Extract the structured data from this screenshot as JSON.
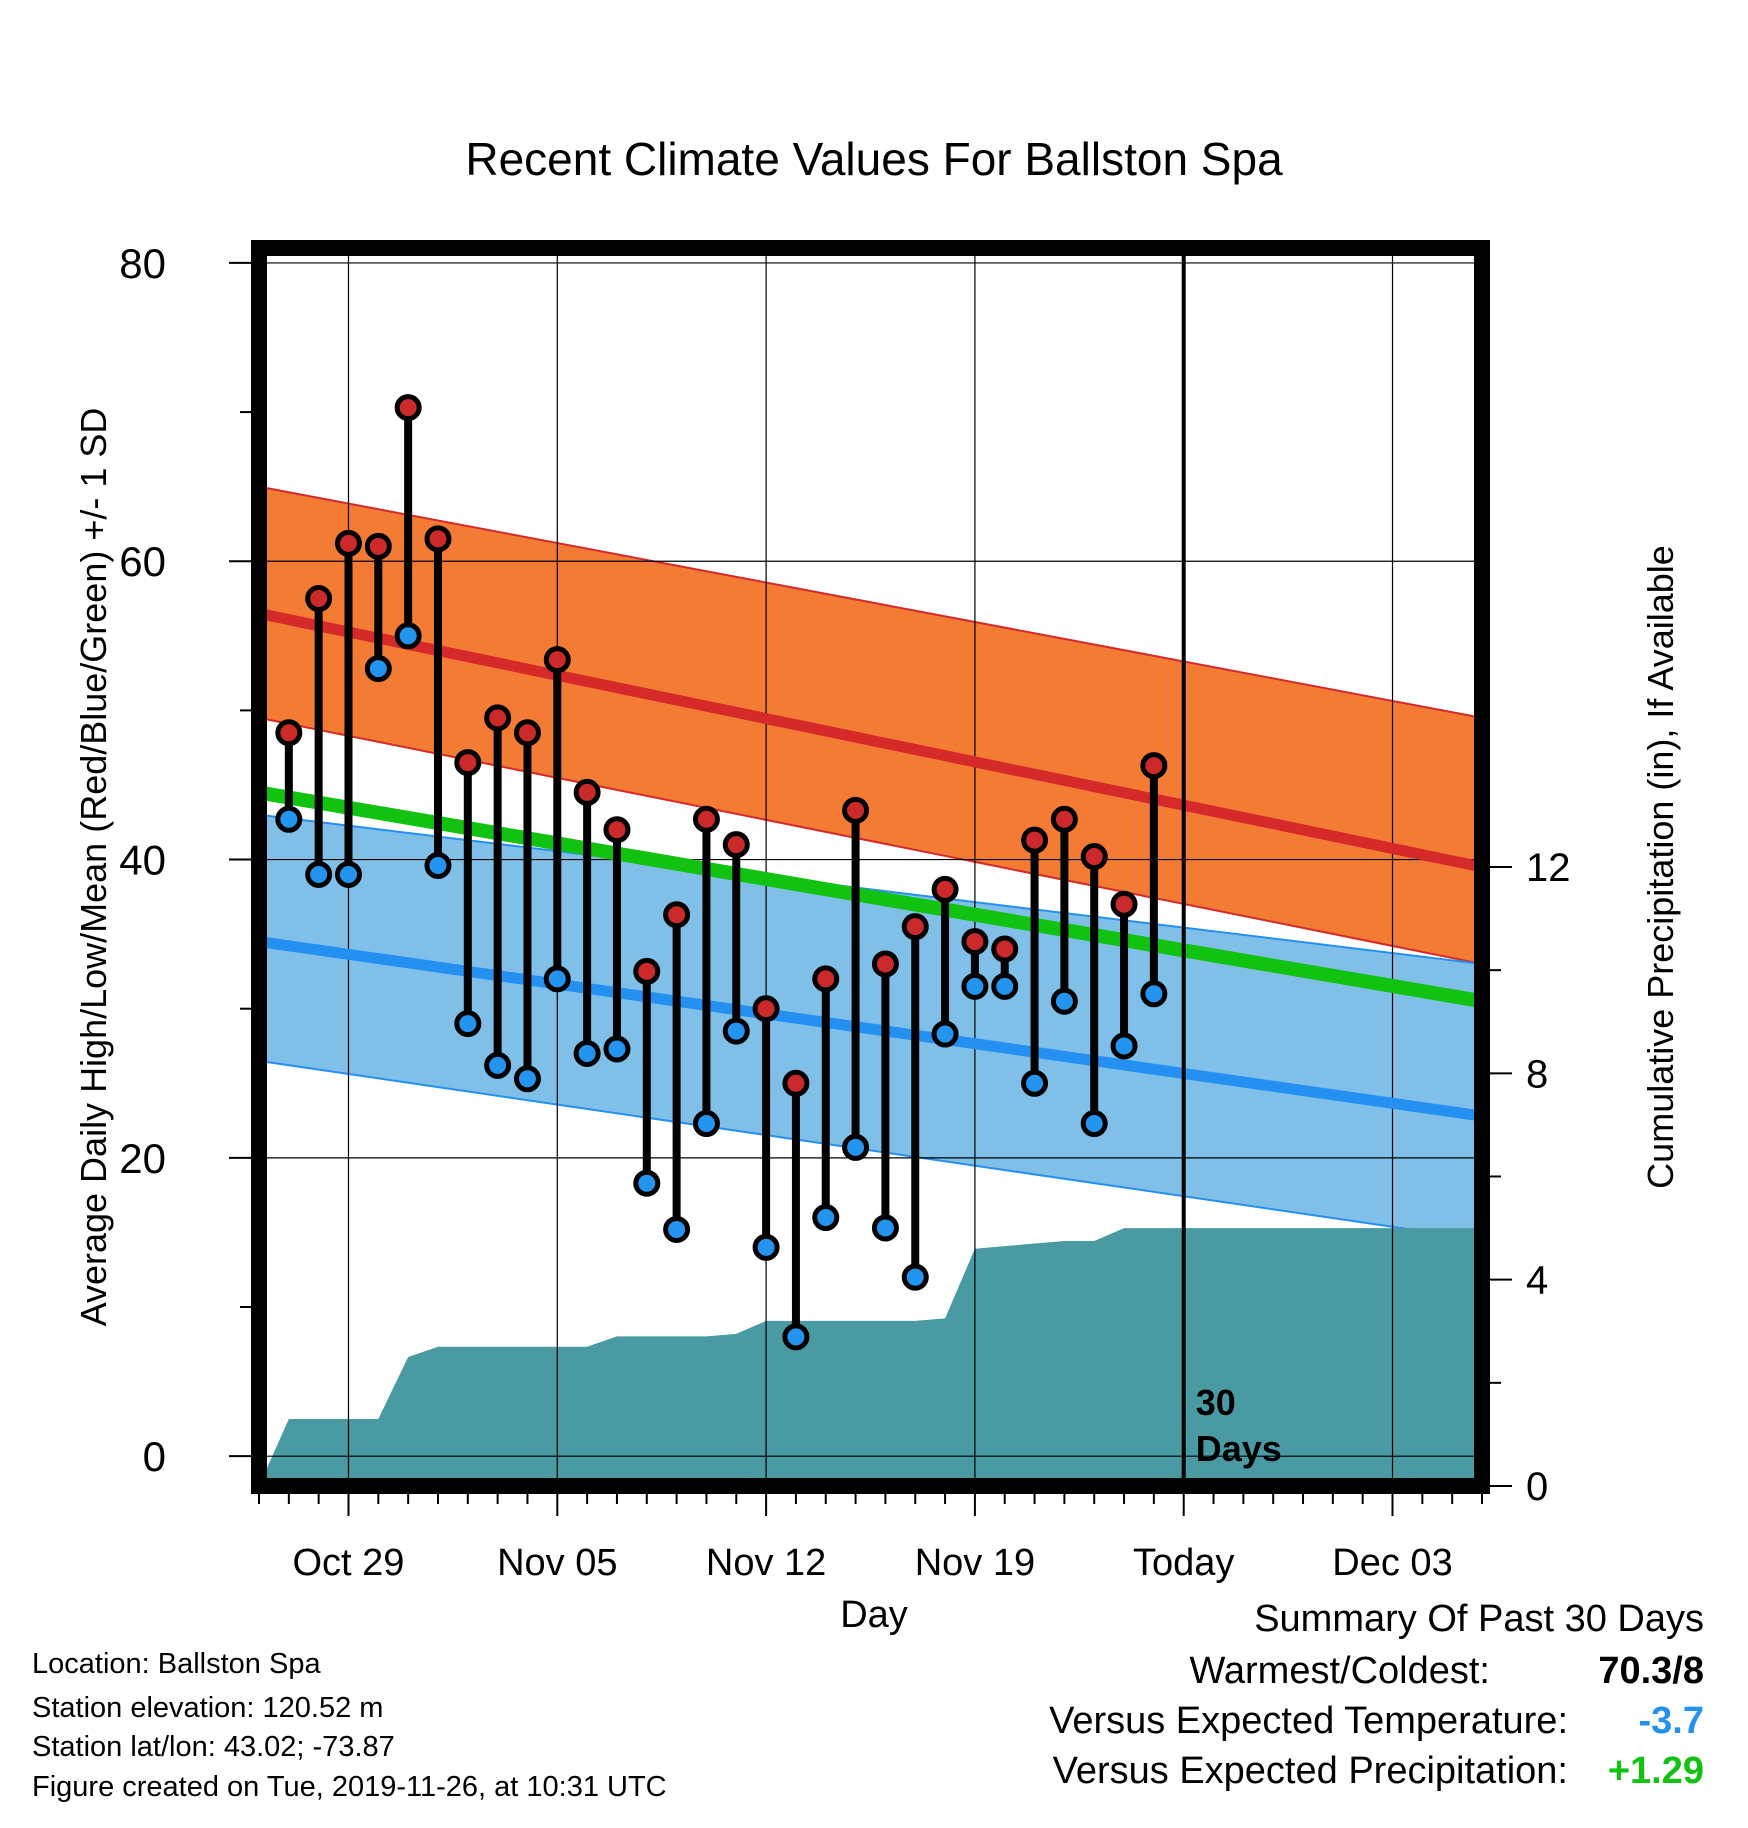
{
  "chart_data": {
    "type": "line",
    "title": "Recent Climate Values For Ballston Spa",
    "xlabel": "Day",
    "ylabel": "Average Daily High/Low/Mean (Red/Blue/Green) +/- 1 SD",
    "y2label": "Cumulative Precipitation (in), If Available",
    "ylim": [
      -2,
      81
    ],
    "y2lim": [
      0,
      24
    ],
    "xlim": [
      "2019-10-26",
      "2019-12-06"
    ],
    "yticks": [
      0,
      20,
      40,
      60,
      80
    ],
    "y2ticks": [
      0,
      4,
      8,
      12
    ],
    "xtick_labels": [
      {
        "date": "2019-10-29",
        "label": "Oct 29"
      },
      {
        "date": "2019-11-05",
        "label": "Nov 05"
      },
      {
        "date": "2019-11-12",
        "label": "Nov 12"
      },
      {
        "date": "2019-11-19",
        "label": "Nov 19"
      },
      {
        "date": "2019-11-26",
        "label": "Today"
      },
      {
        "date": "2019-12-03",
        "label": "Dec 03"
      }
    ],
    "today": "2019-11-26",
    "today_label": [
      "30",
      "Days"
    ],
    "grid": true,
    "colors": {
      "high_band": "#f47b33",
      "high_mean": "#d62a2a",
      "low_band": "#80c0e8",
      "low_mean": "#2390f2",
      "mean": "#11c211",
      "precip": "#4a9aa3",
      "overlap": "#8f1818",
      "observed_high": "#cc2a2a",
      "observed_low": "#2394f0"
    },
    "expected": {
      "x": [
        "2019-10-26",
        "2019-12-06"
      ],
      "high_upper": [
        65.0,
        49.5
      ],
      "high_mean": [
        56.5,
        39.5
      ],
      "high_lower": [
        49.5,
        33.0
      ],
      "low_upper": [
        43.0,
        33.0
      ],
      "low_mean": [
        34.5,
        22.8
      ],
      "low_lower": [
        26.5,
        14.5
      ],
      "mean": [
        44.5,
        30.5
      ]
    },
    "observed": {
      "dates": [
        "2019-10-27",
        "2019-10-28",
        "2019-10-29",
        "2019-10-30",
        "2019-10-31",
        "2019-11-01",
        "2019-11-02",
        "2019-11-03",
        "2019-11-04",
        "2019-11-05",
        "2019-11-06",
        "2019-11-07",
        "2019-11-08",
        "2019-11-09",
        "2019-11-10",
        "2019-11-11",
        "2019-11-12",
        "2019-11-13",
        "2019-11-14",
        "2019-11-15",
        "2019-11-16",
        "2019-11-17",
        "2019-11-18",
        "2019-11-19",
        "2019-11-20",
        "2019-11-21",
        "2019-11-22",
        "2019-11-23",
        "2019-11-24",
        "2019-11-25"
      ],
      "high": [
        48.5,
        57.5,
        61.2,
        61.0,
        70.3,
        61.5,
        46.5,
        49.5,
        48.5,
        53.4,
        44.5,
        42.0,
        32.5,
        36.3,
        42.7,
        41.0,
        30.0,
        25.0,
        32.0,
        43.3,
        33.0,
        35.5,
        38.0,
        34.5,
        34.0,
        41.3,
        42.7,
        40.2,
        37.0,
        46.3
      ],
      "low": [
        42.7,
        39.0,
        39.0,
        52.8,
        55.0,
        39.6,
        29.0,
        26.2,
        25.3,
        32.0,
        27.0,
        27.3,
        18.3,
        15.2,
        22.3,
        28.5,
        14.0,
        8.0,
        16.0,
        20.7,
        15.3,
        12.0,
        28.3,
        31.5,
        31.5,
        25.0,
        30.5,
        22.3,
        27.5,
        31.0
      ]
    },
    "precipitation": {
      "x": [
        "2019-10-26",
        "2019-10-27",
        "2019-10-28",
        "2019-10-29",
        "2019-10-30",
        "2019-10-31",
        "2019-11-01",
        "2019-11-02",
        "2019-11-03",
        "2019-11-04",
        "2019-11-05",
        "2019-11-06",
        "2019-11-07",
        "2019-11-08",
        "2019-11-09",
        "2019-11-10",
        "2019-11-11",
        "2019-11-12",
        "2019-11-13",
        "2019-11-14",
        "2019-11-15",
        "2019-11-16",
        "2019-11-17",
        "2019-11-18",
        "2019-11-19",
        "2019-11-20",
        "2019-11-21",
        "2019-11-22",
        "2019-11-23",
        "2019-11-24",
        "2019-11-25",
        "2019-11-26",
        "2019-12-06"
      ],
      "cumulative": [
        0.0,
        1.3,
        1.3,
        1.3,
        1.3,
        2.5,
        2.7,
        2.7,
        2.7,
        2.7,
        2.7,
        2.7,
        2.9,
        2.9,
        2.9,
        2.9,
        2.95,
        3.2,
        3.2,
        3.2,
        3.2,
        3.2,
        3.2,
        3.25,
        4.6,
        4.65,
        4.7,
        4.75,
        4.75,
        5.0,
        5.0,
        5.0,
        5.0
      ]
    }
  },
  "info": {
    "location": "Location: Ballston Spa",
    "elevation": "Station elevation: 120.52 m",
    "latlon": "Station lat/lon: 43.02; -73.87",
    "created": "Figure created on Tue, 2019-11-26, at 10:31 UTC"
  },
  "summary": {
    "title": "Summary Of Past 30 Days",
    "warm_cold_label": "Warmest/Coldest:",
    "warm_cold_value": "70.3/8",
    "temp_label": "Versus Expected Temperature:",
    "temp_value": "-3.7",
    "temp_color": "#2390f2",
    "precip_label": "Versus Expected Precipitation:",
    "precip_value": "+1.29",
    "precip_color": "#11c211"
  }
}
